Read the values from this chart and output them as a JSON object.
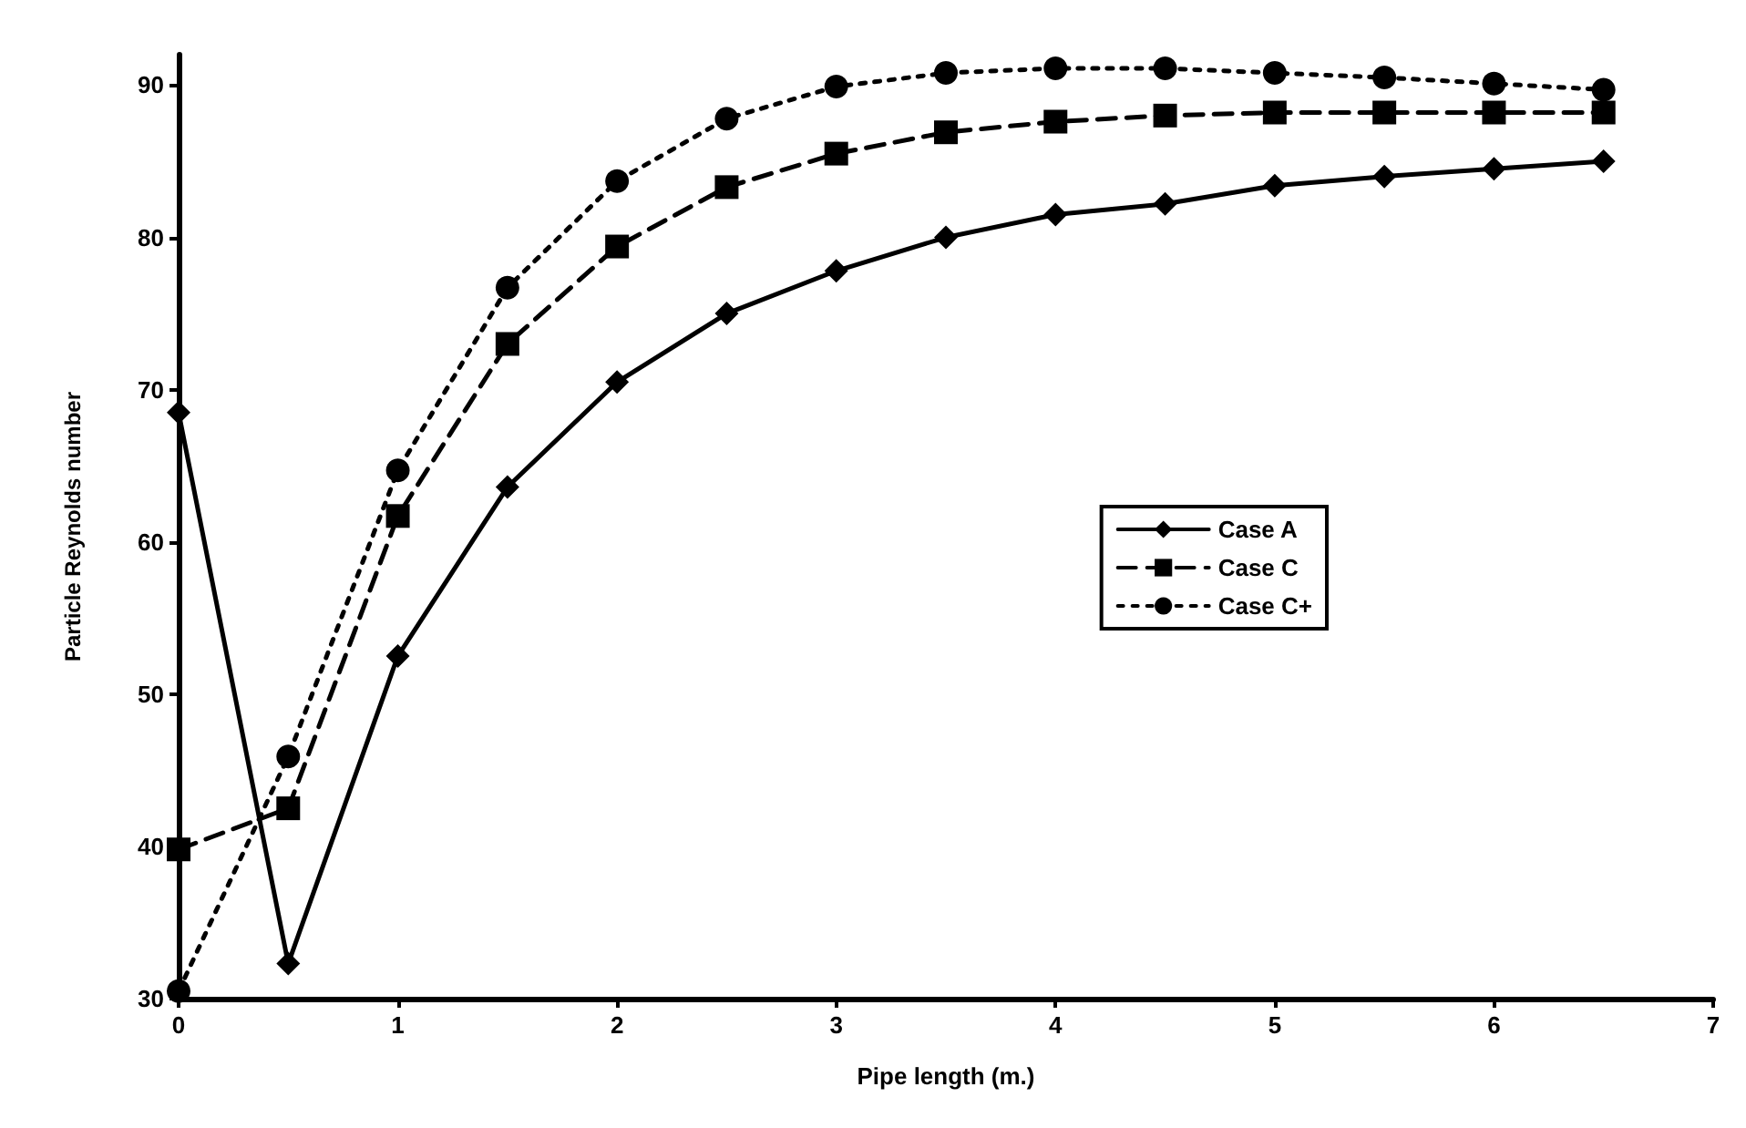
{
  "chart_data": {
    "type": "line",
    "xlabel": "Pipe length (m.)",
    "ylabel": "Particle Reynolds number",
    "x": [
      0,
      0.5,
      1,
      1.5,
      2,
      2.5,
      3,
      3.5,
      4,
      4.5,
      5,
      5.5,
      6,
      6.5
    ],
    "xlim": [
      0,
      7
    ],
    "xticks": [
      0,
      1,
      2,
      3,
      4,
      5,
      6,
      7
    ],
    "ylim": [
      30,
      92
    ],
    "yticks": [
      30,
      40,
      50,
      60,
      70,
      80,
      90
    ],
    "grid": false,
    "legend": "right",
    "series": [
      {
        "name": "Case A",
        "color": "#000000",
        "marker": "diamond",
        "line_style": "solid",
        "values": [
          68.5,
          32.3,
          52.5,
          63.6,
          70.5,
          75,
          77.8,
          80,
          81.5,
          82.2,
          83.4,
          84,
          84.5,
          85
        ]
      },
      {
        "name": "Case C",
        "color": "#000000",
        "marker": "square",
        "line_style": "dashed",
        "values": [
          39.8,
          42.5,
          61.7,
          73,
          79.4,
          83.3,
          85.5,
          86.9,
          87.6,
          88,
          88.2,
          88.2,
          88.2,
          88.2
        ]
      },
      {
        "name": "Case C+",
        "color": "#000000",
        "marker": "circle",
        "line_style": "dotted",
        "values": [
          30.5,
          45.9,
          64.7,
          76.7,
          83.7,
          87.8,
          89.9,
          90.8,
          91.1,
          91.1,
          90.8,
          90.5,
          90.1,
          89.7
        ]
      }
    ]
  }
}
